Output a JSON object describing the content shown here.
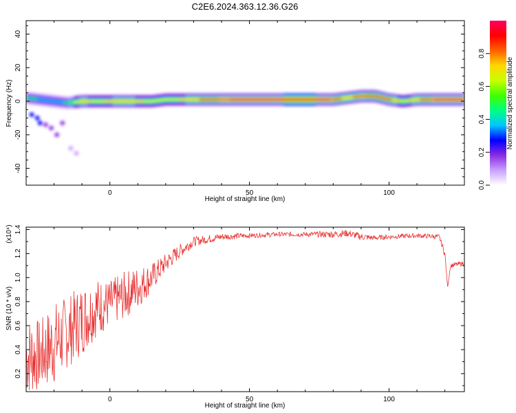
{
  "title": "C2E6.2024.363.12.36.G26",
  "chart_data": [
    {
      "type": "heatmap",
      "xlabel": "Height of straight line (km)",
      "ylabel": "Frequency (Hz)",
      "xlim": [
        -30,
        127
      ],
      "ylim": [
        -50,
        48
      ],
      "xticks": [
        0,
        50,
        100
      ],
      "yticks": [
        -40,
        -20,
        0,
        20,
        40
      ],
      "colorbar": {
        "label": "Normalized spectral amplitude",
        "range": [
          0,
          1
        ],
        "ticks": [
          0.0,
          0.2,
          0.4,
          0.6,
          0.8
        ],
        "colors": [
          "#ffffff",
          "#c8a0ff",
          "#8a2be2",
          "#0000ff",
          "#00c8ff",
          "#00ff80",
          "#40ff00",
          "#c8ff00",
          "#ffd700",
          "#ff6000",
          "#ff0000",
          "#ff0060"
        ]
      },
      "ridge": [
        {
          "x": -30,
          "y": 2,
          "a": 0.45
        },
        {
          "x": -25,
          "y": 1,
          "a": 0.4
        },
        {
          "x": -20,
          "y": 0,
          "a": 0.35
        },
        {
          "x": -15,
          "y": -1,
          "a": 0.45
        },
        {
          "x": -10,
          "y": 0,
          "a": 0.75
        },
        {
          "x": -5,
          "y": 0,
          "a": 0.65
        },
        {
          "x": 0,
          "y": 0,
          "a": 0.7
        },
        {
          "x": 5,
          "y": 0,
          "a": 0.75
        },
        {
          "x": 10,
          "y": 0,
          "a": 0.7
        },
        {
          "x": 15,
          "y": 0,
          "a": 0.65
        },
        {
          "x": 20,
          "y": 1,
          "a": 0.6
        },
        {
          "x": 30,
          "y": 1,
          "a": 0.75
        },
        {
          "x": 40,
          "y": 1,
          "a": 0.85
        },
        {
          "x": 50,
          "y": 1,
          "a": 0.9
        },
        {
          "x": 60,
          "y": 1,
          "a": 0.9
        },
        {
          "x": 70,
          "y": 1,
          "a": 0.95
        },
        {
          "x": 80,
          "y": 1,
          "a": 0.85
        },
        {
          "x": 85,
          "y": 2,
          "a": 0.7
        },
        {
          "x": 90,
          "y": 3,
          "a": 0.85
        },
        {
          "x": 95,
          "y": 3,
          "a": 0.8
        },
        {
          "x": 100,
          "y": 1,
          "a": 0.8
        },
        {
          "x": 105,
          "y": 0,
          "a": 0.65
        },
        {
          "x": 110,
          "y": 1,
          "a": 0.75
        },
        {
          "x": 115,
          "y": 1,
          "a": 0.85
        },
        {
          "x": 120,
          "y": 1,
          "a": 0.9
        },
        {
          "x": 127,
          "y": 1,
          "a": 0.9
        }
      ],
      "scatter": [
        {
          "x": -28,
          "y": -8,
          "a": 0.3
        },
        {
          "x": -26,
          "y": -10,
          "a": 0.25
        },
        {
          "x": -25,
          "y": -13,
          "a": 0.25
        },
        {
          "x": -23,
          "y": -14,
          "a": 0.2
        },
        {
          "x": -21,
          "y": -16,
          "a": 0.2
        },
        {
          "x": -19,
          "y": -20,
          "a": 0.15
        },
        {
          "x": -17,
          "y": -13,
          "a": 0.15
        },
        {
          "x": -14,
          "y": -28,
          "a": 0.1
        },
        {
          "x": -12,
          "y": -31,
          "a": 0.08
        }
      ]
    },
    {
      "type": "line",
      "xlabel": "Height of straight line (km)",
      "ylabel": "SNR (10 * v/v)",
      "multiplier_label": "(x10⁴)",
      "xlim": [
        -30,
        127
      ],
      "ylim": [
        0.05,
        1.42
      ],
      "xticks": [
        0,
        50,
        100
      ],
      "yticks": [
        0.2,
        0.4,
        0.6,
        0.8,
        1.0,
        1.2,
        1.4
      ],
      "color": "#e83030",
      "envelope": [
        {
          "x": -30,
          "y": 0.35,
          "spread": 0.35
        },
        {
          "x": -25,
          "y": 0.35,
          "spread": 0.3
        },
        {
          "x": -20,
          "y": 0.45,
          "spread": 0.35
        },
        {
          "x": -15,
          "y": 0.55,
          "spread": 0.3
        },
        {
          "x": -10,
          "y": 0.65,
          "spread": 0.3
        },
        {
          "x": -5,
          "y": 0.75,
          "spread": 0.25
        },
        {
          "x": 0,
          "y": 0.78,
          "spread": 0.2
        },
        {
          "x": 5,
          "y": 0.85,
          "spread": 0.2
        },
        {
          "x": 10,
          "y": 0.92,
          "spread": 0.18
        },
        {
          "x": 15,
          "y": 1.0,
          "spread": 0.12
        },
        {
          "x": 20,
          "y": 1.12,
          "spread": 0.08
        },
        {
          "x": 25,
          "y": 1.22,
          "spread": 0.06
        },
        {
          "x": 30,
          "y": 1.3,
          "spread": 0.04
        },
        {
          "x": 40,
          "y": 1.34,
          "spread": 0.03
        },
        {
          "x": 50,
          "y": 1.35,
          "spread": 0.02
        },
        {
          "x": 60,
          "y": 1.36,
          "spread": 0.02
        },
        {
          "x": 70,
          "y": 1.36,
          "spread": 0.02
        },
        {
          "x": 80,
          "y": 1.36,
          "spread": 0.03
        },
        {
          "x": 85,
          "y": 1.37,
          "spread": 0.03
        },
        {
          "x": 90,
          "y": 1.34,
          "spread": 0.03
        },
        {
          "x": 95,
          "y": 1.33,
          "spread": 0.02
        },
        {
          "x": 100,
          "y": 1.34,
          "spread": 0.02
        },
        {
          "x": 110,
          "y": 1.35,
          "spread": 0.02
        },
        {
          "x": 118,
          "y": 1.34,
          "spread": 0.02
        },
        {
          "x": 120,
          "y": 1.2,
          "spread": 0.03
        },
        {
          "x": 121,
          "y": 0.92,
          "spread": 0.0
        },
        {
          "x": 122,
          "y": 1.1,
          "spread": 0.02
        },
        {
          "x": 127,
          "y": 1.12,
          "spread": 0.02
        }
      ]
    }
  ]
}
